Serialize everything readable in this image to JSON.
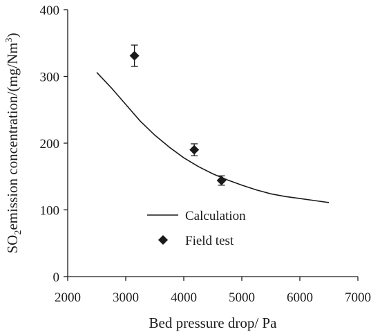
{
  "chart_data": {
    "type": "scatter",
    "title": "",
    "xlabel": "Bed pressure drop/ Pa",
    "ylabel": {
      "prefix": "SO",
      "sub": "2",
      "middle": "emission concentration/(mg/Nm",
      "sup": "3",
      "suffix": ")"
    },
    "xlim": [
      2000,
      7000
    ],
    "ylim": [
      0,
      400
    ],
    "x_ticks": [
      "2000",
      "3000",
      "4000",
      "5000",
      "6000",
      "7000"
    ],
    "y_ticks": [
      "0",
      "100",
      "200",
      "300",
      "400"
    ],
    "grid": false,
    "legend_position": "bottom-center",
    "series": [
      {
        "name": "Calculation",
        "style": "line",
        "color": "#1a1a1a",
        "x": [
          2500,
          2750,
          3000,
          3250,
          3500,
          3750,
          4000,
          4250,
          4500,
          4750,
          5000,
          5250,
          5500,
          5750,
          6000,
          6250,
          6500
        ],
        "y": [
          306,
          283,
          258,
          233,
          212,
          194,
          178,
          165,
          154,
          145,
          137,
          130,
          124,
          120,
          117,
          114,
          111
        ]
      },
      {
        "name": "Field test",
        "style": "marker",
        "marker": "diamond",
        "color": "#1a1a1a",
        "points": [
          {
            "x": 3150,
            "y": 331,
            "err": 16
          },
          {
            "x": 4180,
            "y": 190,
            "err": 9
          },
          {
            "x": 4650,
            "y": 144,
            "err": 7
          }
        ]
      }
    ]
  }
}
